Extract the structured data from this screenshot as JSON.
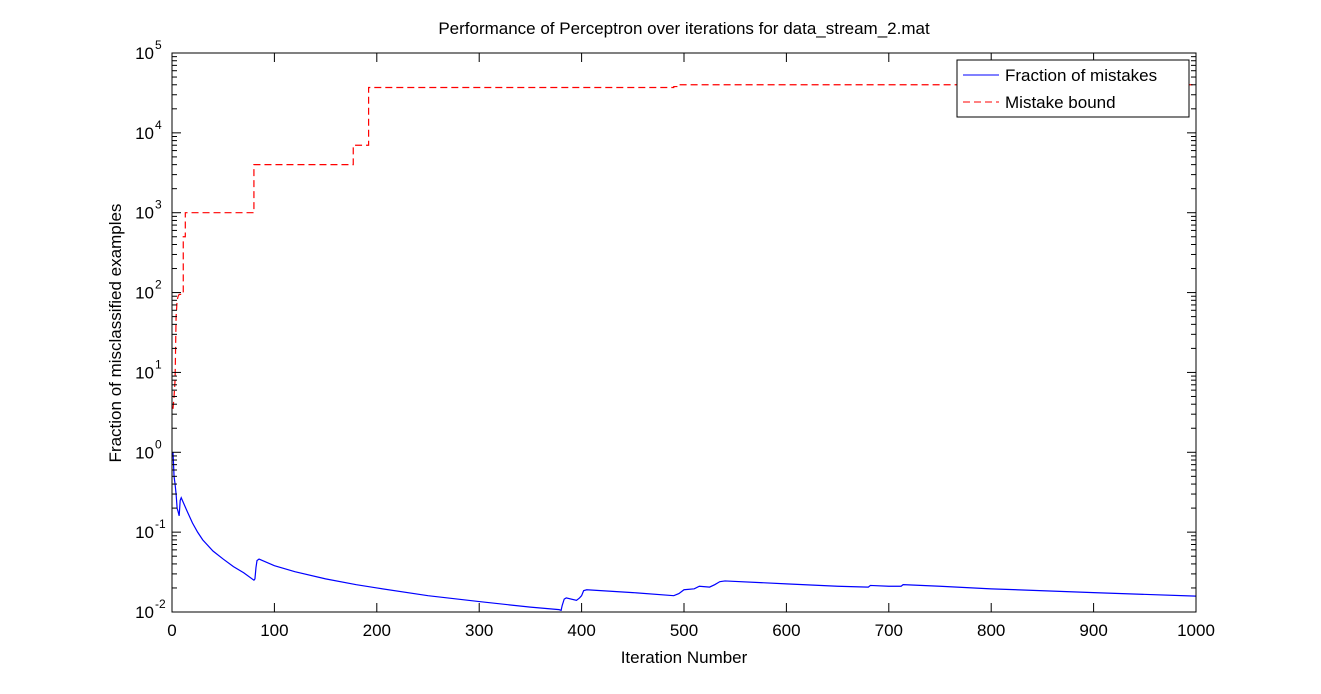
{
  "chart_data": {
    "type": "line",
    "title": "Performance of Perceptron over iterations for data_stream_2.mat",
    "xlabel": "Iteration Number",
    "ylabel": "Fraction of misclassified examples",
    "xlim": [
      0,
      1000
    ],
    "ylim": [
      0.01,
      100000
    ],
    "yscale": "log",
    "grid": false,
    "legend_position": "top-right",
    "x_ticks": [
      "0",
      "100",
      "200",
      "300",
      "400",
      "500",
      "600",
      "700",
      "800",
      "900",
      "1000"
    ],
    "y_ticks": [
      {
        "base": "10",
        "exp": "-2"
      },
      {
        "base": "10",
        "exp": "-1"
      },
      {
        "base": "10",
        "exp": "0"
      },
      {
        "base": "10",
        "exp": "1"
      },
      {
        "base": "10",
        "exp": "2"
      },
      {
        "base": "10",
        "exp": "3"
      },
      {
        "base": "10",
        "exp": "4"
      },
      {
        "base": "10",
        "exp": "5"
      }
    ],
    "series": [
      {
        "name": "Fraction of mistakes",
        "color": "#0000ff",
        "style": "solid",
        "points": [
          [
            1,
            1.0
          ],
          [
            2,
            0.5
          ],
          [
            3,
            0.4
          ],
          [
            4,
            0.3
          ],
          [
            5,
            0.2
          ],
          [
            6,
            0.18
          ],
          [
            7,
            0.16
          ],
          [
            8,
            0.25
          ],
          [
            9,
            0.27
          ],
          [
            12,
            0.22
          ],
          [
            15,
            0.18
          ],
          [
            20,
            0.13
          ],
          [
            25,
            0.1
          ],
          [
            30,
            0.08
          ],
          [
            40,
            0.058
          ],
          [
            50,
            0.046
          ],
          [
            60,
            0.037
          ],
          [
            70,
            0.031
          ],
          [
            80,
            0.025
          ],
          [
            81,
            0.026
          ],
          [
            82,
            0.036
          ],
          [
            83,
            0.044
          ],
          [
            85,
            0.046
          ],
          [
            100,
            0.038
          ],
          [
            120,
            0.032
          ],
          [
            150,
            0.026
          ],
          [
            180,
            0.022
          ],
          [
            200,
            0.02
          ],
          [
            250,
            0.016
          ],
          [
            300,
            0.0135
          ],
          [
            350,
            0.0115
          ],
          [
            378,
            0.0107
          ],
          [
            380,
            0.0105
          ],
          [
            381,
            0.012
          ],
          [
            383,
            0.0145
          ],
          [
            385,
            0.015
          ],
          [
            395,
            0.014
          ],
          [
            398,
            0.015
          ],
          [
            400,
            0.016
          ],
          [
            402,
            0.0185
          ],
          [
            405,
            0.019
          ],
          [
            450,
            0.0175
          ],
          [
            490,
            0.016
          ],
          [
            495,
            0.017
          ],
          [
            500,
            0.019
          ],
          [
            510,
            0.0195
          ],
          [
            515,
            0.021
          ],
          [
            525,
            0.0205
          ],
          [
            530,
            0.022
          ],
          [
            535,
            0.024
          ],
          [
            540,
            0.0245
          ],
          [
            600,
            0.0225
          ],
          [
            650,
            0.021
          ],
          [
            680,
            0.0205
          ],
          [
            682,
            0.0215
          ],
          [
            700,
            0.021
          ],
          [
            712,
            0.021
          ],
          [
            714,
            0.022
          ],
          [
            750,
            0.021
          ],
          [
            800,
            0.0195
          ],
          [
            900,
            0.0175
          ],
          [
            1000,
            0.0158
          ]
        ]
      },
      {
        "name": "Mistake bound",
        "color": "#ff0000",
        "style": "dashed",
        "points": [
          [
            1,
            3.5
          ],
          [
            2,
            5
          ],
          [
            3,
            8
          ],
          [
            4,
            50
          ],
          [
            5,
            80
          ],
          [
            6,
            90
          ],
          [
            7,
            95
          ],
          [
            11,
            95
          ],
          [
            11,
            500
          ],
          [
            13,
            500
          ],
          [
            13,
            1000
          ],
          [
            80,
            1000
          ],
          [
            80,
            4000
          ],
          [
            177,
            4000
          ],
          [
            177,
            7000
          ],
          [
            192,
            7000
          ],
          [
            192,
            37000
          ],
          [
            490,
            37000
          ],
          [
            490,
            38000
          ],
          [
            493,
            38000
          ],
          [
            493,
            40000
          ],
          [
            1000,
            40000
          ]
        ]
      }
    ]
  }
}
